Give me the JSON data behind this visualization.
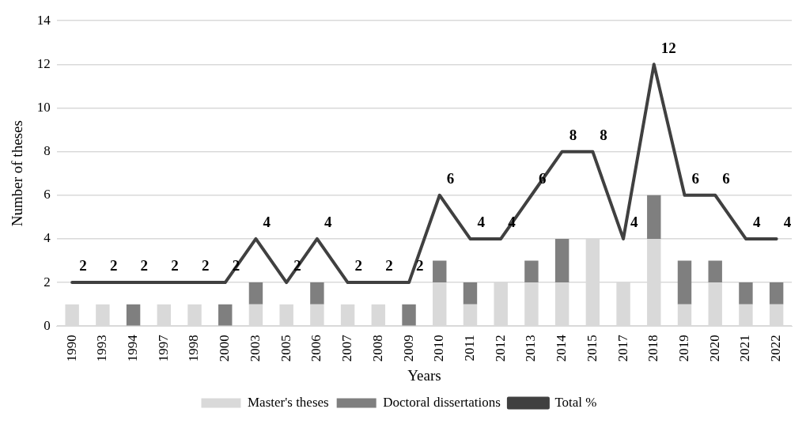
{
  "chart_data": {
    "type": "bar",
    "stacked": true,
    "xlabel": "Years",
    "ylabel": "Number of theses",
    "categories": [
      "1990",
      "1993",
      "1994",
      "1997",
      "1998",
      "2000",
      "2003",
      "2005",
      "2006",
      "2007",
      "2008",
      "2009",
      "2010",
      "2011",
      "2012",
      "2013",
      "2014",
      "2015",
      "2017",
      "2018",
      "2019",
      "2020",
      "2021",
      "2022"
    ],
    "series": [
      {
        "name": "Master's theses",
        "color": "#d9d9d9",
        "values": [
          1,
          1,
          0,
          1,
          1,
          0,
          1,
          1,
          1,
          1,
          1,
          0,
          2,
          1,
          2,
          2,
          2,
          4,
          2,
          4,
          1,
          2,
          1,
          1
        ]
      },
      {
        "name": "Doctoral dissertations",
        "color": "#7f7f7f",
        "values": [
          0,
          0,
          1,
          0,
          0,
          1,
          1,
          0,
          1,
          0,
          0,
          1,
          1,
          1,
          0,
          1,
          2,
          0,
          0,
          2,
          2,
          1,
          1,
          1
        ]
      },
      {
        "name": "Total %",
        "type": "line",
        "color": "#404040",
        "data_labels": true,
        "values": [
          2,
          2,
          2,
          2,
          2,
          2,
          4,
          2,
          4,
          2,
          2,
          2,
          6,
          4,
          4,
          6,
          8,
          8,
          4,
          12,
          6,
          6,
          4,
          4
        ]
      }
    ],
    "ylim": [
      0,
      14
    ],
    "yticks": [
      0,
      2,
      4,
      6,
      8,
      10,
      12,
      14
    ],
    "grid": "y",
    "legend": "bottom",
    "marker": "none"
  }
}
